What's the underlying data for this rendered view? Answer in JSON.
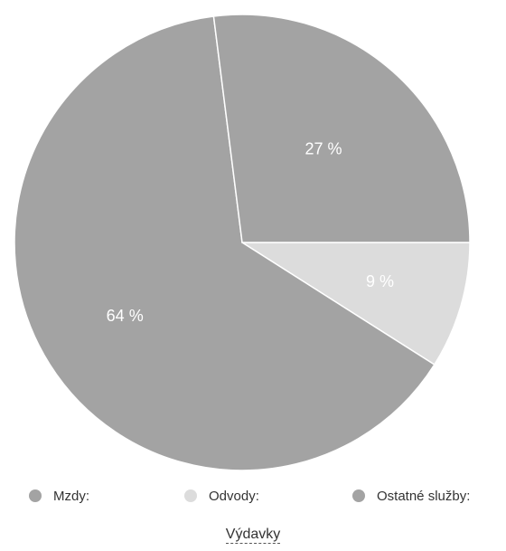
{
  "chart_data": {
    "type": "pie",
    "title": "Výdavky",
    "categories": [
      "Mzdy:",
      "Odvody:",
      "Ostatné služby:"
    ],
    "values": [
      64,
      9,
      27
    ],
    "data_labels": [
      "64 %",
      "9 %",
      "27 %"
    ],
    "colors": [
      "#a3a3a3",
      "#dcdcdc",
      "#a3a3a3"
    ],
    "legend_position": "bottom",
    "start_angle_deg": 0,
    "direction": "clockwise"
  }
}
